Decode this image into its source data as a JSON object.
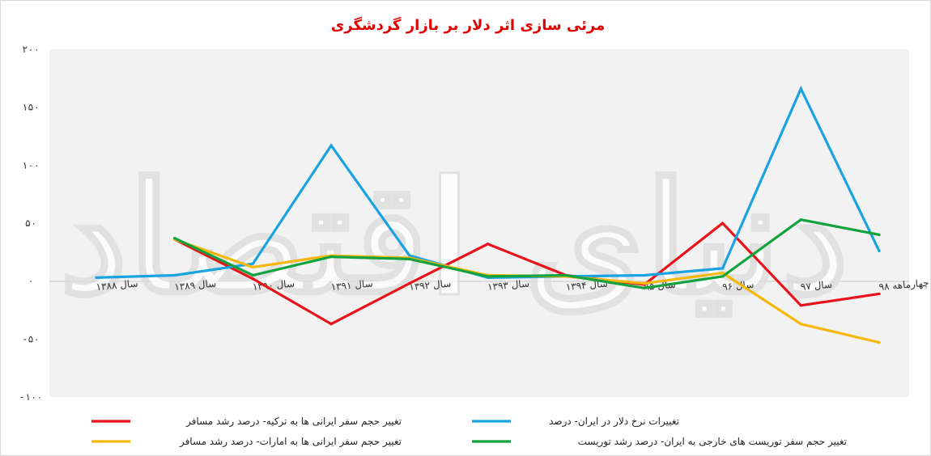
{
  "chart_data": {
    "type": "line",
    "title": "مرئی سازی اثر دلار بر بازار گردشگری",
    "categories": [
      "سال ۱۳۸۸",
      "سال ۱۳۸۹",
      "سال ۱۳۹۰",
      "سال ۱۳۹۱",
      "سال ۱۳۹۲",
      "سال ۱۳۹۳",
      "سال ۱۳۹۴",
      "سال ۹۵",
      "سال ۹۶",
      "سال ۹۷",
      "چهارماهه ۹۸"
    ],
    "ylim": [
      -100,
      200
    ],
    "yticks": [
      "۲۰۰",
      "۱۵۰",
      "۱۰۰",
      "۵۰",
      "۰",
      "-۵۰",
      "-۱۰۰"
    ],
    "yticks_values": [
      200,
      150,
      100,
      50,
      0,
      -50,
      -100
    ],
    "grid": false,
    "legend_position": "bottom",
    "series": [
      {
        "name": "تغییر حجم سفر ایرانی ها به ترکیه- درصد رشد مسافر",
        "color": "#e8131b",
        "values": [
          null,
          36,
          2,
          -37,
          -2,
          32,
          5,
          -3,
          50,
          -21,
          -11
        ]
      },
      {
        "name": "تغییرات نرخ دلار در ایران- درصد",
        "color": "#1aa3e0",
        "values": [
          3,
          5,
          15,
          117,
          22,
          3,
          4,
          5,
          11,
          166,
          26
        ]
      },
      {
        "name": "تغییر حجم سفر ایرانی ها به امارات- درصد رشد مسافر",
        "color": "#f5b80a",
        "values": [
          null,
          36,
          12,
          22,
          20,
          5,
          4,
          -2,
          7,
          -37,
          -53
        ]
      },
      {
        "name": "تغییر حجم سفر توریست های خارجی به ایران- درصد رشد توریست",
        "color": "#12a33e",
        "values": [
          null,
          37,
          5,
          21,
          19,
          4,
          5,
          -6,
          4,
          53,
          40
        ]
      }
    ]
  },
  "watermark": "دنیای اقتصاد"
}
